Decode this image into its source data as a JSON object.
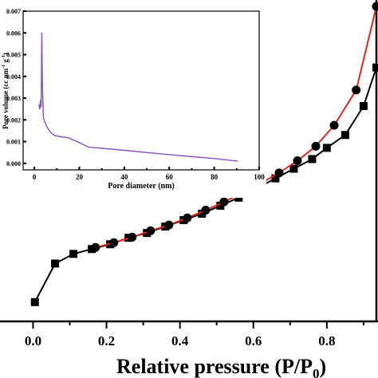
{
  "chart_data": [
    {
      "type": "line",
      "xlabel": "Relative pressure (P/P",
      "xlabel_sub": "0",
      "xlabel_tail": ")",
      "xlim": [
        -0.09,
        0.935
      ],
      "xticks": [
        0.0,
        0.2,
        0.4,
        0.6,
        0.8
      ],
      "xtick_labels": [
        "0.0",
        "0.2",
        "0.4",
        "0.6",
        "0.8"
      ],
      "ylim": [
        0,
        1
      ],
      "grid": false,
      "series": [
        {
          "marker": "square",
          "color": "#000000",
          "x": [
            0.005,
            0.06,
            0.11,
            0.16,
            0.21,
            0.26,
            0.31,
            0.36,
            0.41,
            0.46,
            0.51,
            0.56,
            0.61,
            0.66,
            0.71,
            0.76,
            0.8,
            0.85,
            0.9,
            0.935
          ],
          "y": [
            0.06,
            0.18,
            0.21,
            0.225,
            0.24,
            0.26,
            0.275,
            0.295,
            0.315,
            0.335,
            0.36,
            0.385,
            0.415,
            0.445,
            0.475,
            0.505,
            0.54,
            0.58,
            0.67,
            0.79
          ]
        },
        {
          "marker": "circle",
          "color": "#e8251c",
          "x": [
            0.17,
            0.22,
            0.27,
            0.32,
            0.37,
            0.42,
            0.47,
            0.52,
            0.57,
            0.62,
            0.67,
            0.72,
            0.77,
            0.82,
            0.88,
            0.935
          ],
          "y": [
            0.23,
            0.245,
            0.262,
            0.282,
            0.3,
            0.322,
            0.346,
            0.372,
            0.4,
            0.43,
            0.462,
            0.5,
            0.545,
            0.61,
            0.72,
            0.98
          ]
        }
      ]
    },
    {
      "type": "line",
      "xlabel": "Pore diameter (nm)",
      "ylabel": "Pore volume (cc nm",
      "ylabel_sup1": "-1",
      "ylabel_mid": " g",
      "ylabel_sup2": "-1",
      "ylabel_tail": ")",
      "xlim": [
        -5,
        100
      ],
      "ylim": [
        -0.0003,
        0.007
      ],
      "xticks": [
        0,
        20,
        40,
        60,
        80,
        100
      ],
      "xtick_labels": [
        "0",
        "20",
        "40",
        "60",
        "80",
        "100"
      ],
      "yticks": [
        0.0,
        0.001,
        0.002,
        0.003,
        0.004,
        0.005,
        0.006,
        0.007
      ],
      "ytick_labels": [
        "0.000",
        "0.001",
        "0.002",
        "0.003",
        "0.004",
        "0.005",
        "0.006",
        "0.007"
      ],
      "grid": false,
      "series": [
        {
          "color": "#8a4fc8",
          "x": [
            2.0,
            2.4,
            2.7,
            3.0,
            3.3,
            3.6,
            4.0,
            4.6,
            5.5,
            7.0,
            9.0,
            12.0,
            15.0,
            20.0,
            24.0,
            40.0,
            60.0,
            80.0,
            90.5
          ],
          "y": [
            0.0027,
            0.0025,
            0.0029,
            0.0026,
            0.006,
            0.0036,
            0.0021,
            0.0019,
            0.0017,
            0.00145,
            0.00128,
            0.00122,
            0.00118,
            0.00095,
            0.00075,
            0.0006,
            0.0004,
            0.00022,
            0.0001
          ]
        }
      ]
    }
  ]
}
